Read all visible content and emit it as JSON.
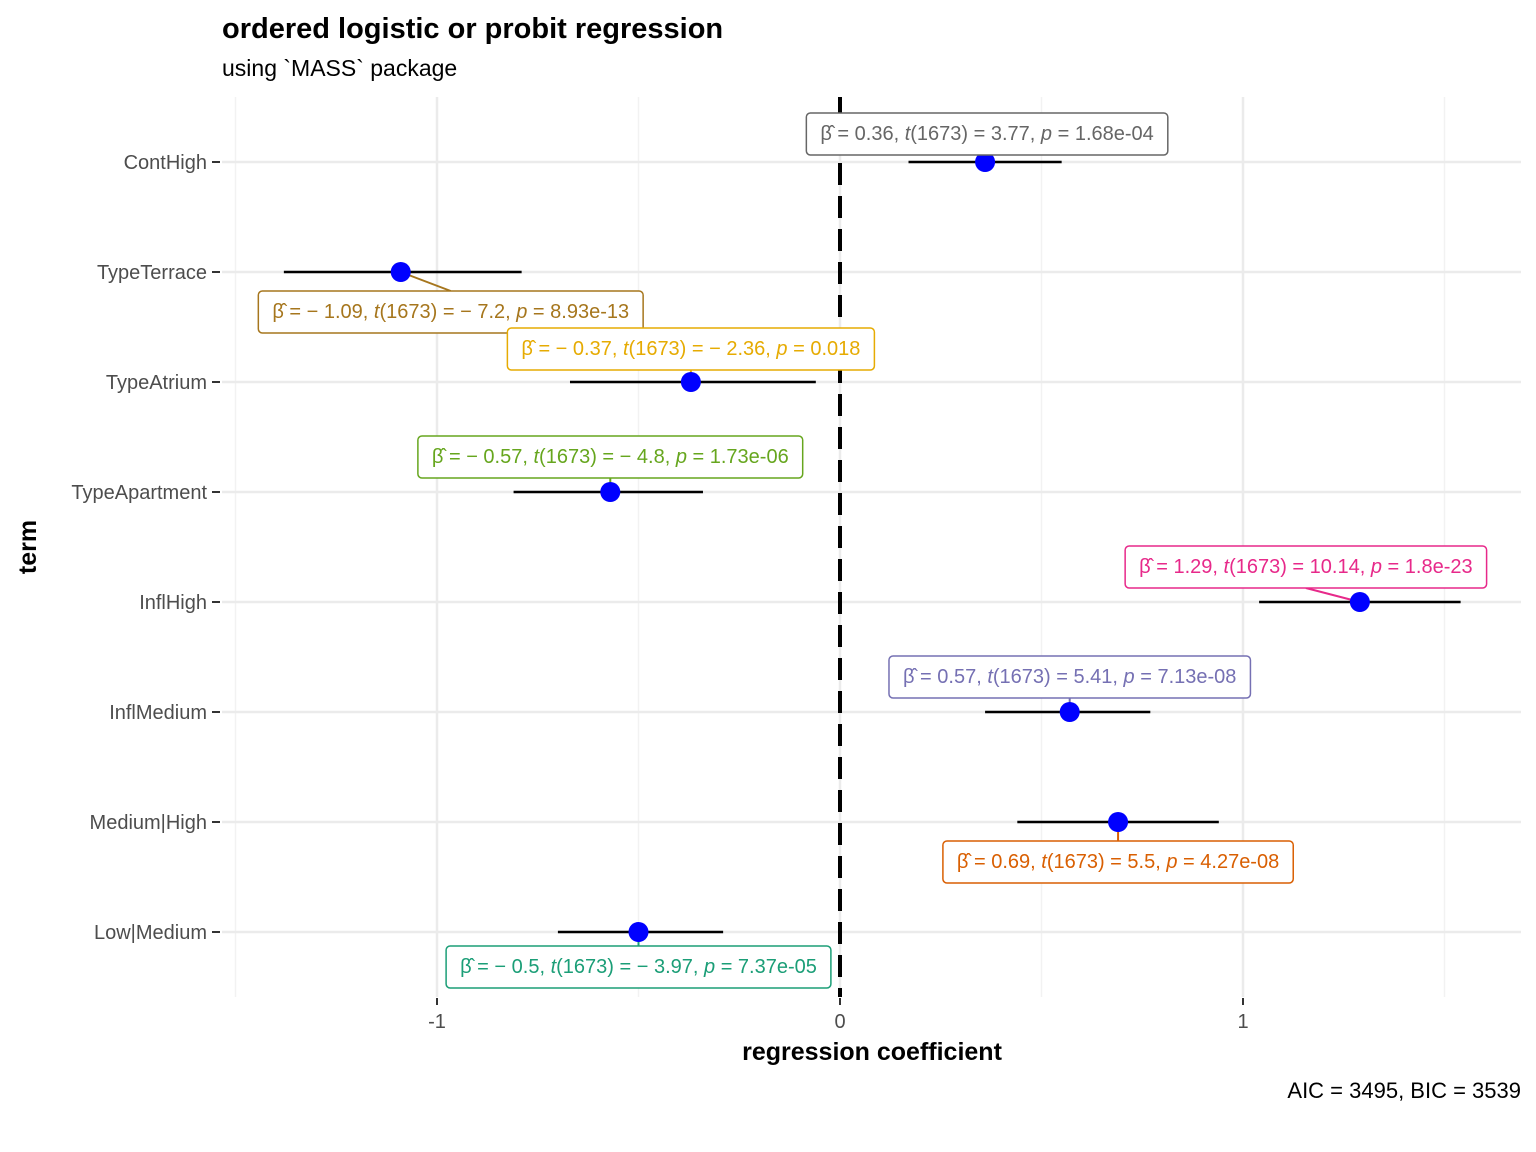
{
  "chart_data": {
    "type": "scatter",
    "title": "ordered logistic or probit regression",
    "subtitle": "using `MASS` package",
    "xlabel": "regression coefficient",
    "ylabel": "term",
    "caption": "AIC = 3495, BIC = 3539",
    "xlim": [
      -1.5,
      1.5
    ],
    "xticks": [
      -1,
      0,
      1
    ],
    "xtick_labels": [
      "-1",
      "0",
      "1"
    ],
    "reference_line": 0,
    "grid": true,
    "point_color": "#0000ff",
    "terms": [
      {
        "term": "ContHigh",
        "estimate": 0.36,
        "ci": [
          0.17,
          0.55
        ],
        "label": {
          "beta": "0.36",
          "df": "1673",
          "t": "3.77",
          "p": "1.68e-04"
        },
        "color": "#666666"
      },
      {
        "term": "TypeTerrace",
        "estimate": -1.09,
        "ci": [
          -1.38,
          -0.79
        ],
        "label": {
          "beta": "− 1.09",
          "df": "1673",
          "t": "− 7.2",
          "p": "8.93e-13"
        },
        "color": "#A6761D"
      },
      {
        "term": "TypeAtrium",
        "estimate": -0.37,
        "ci": [
          -0.67,
          -0.06
        ],
        "label": {
          "beta": "− 0.37",
          "df": "1673",
          "t": "− 2.36",
          "p": "0.018"
        },
        "color": "#E6AB02"
      },
      {
        "term": "TypeApartment",
        "estimate": -0.57,
        "ci": [
          -0.81,
          -0.34
        ],
        "label": {
          "beta": "− 0.57",
          "df": "1673",
          "t": "− 4.8",
          "p": "1.73e-06"
        },
        "color": "#66A61E"
      },
      {
        "term": "InflHigh",
        "estimate": 1.29,
        "ci": [
          1.04,
          1.54
        ],
        "label": {
          "beta": "1.29",
          "df": "1673",
          "t": "10.14",
          "p": "1.8e-23"
        },
        "color": "#E7298A"
      },
      {
        "term": "InflMedium",
        "estimate": 0.57,
        "ci": [
          0.36,
          0.77
        ],
        "label": {
          "beta": "0.57",
          "df": "1673",
          "t": "5.41",
          "p": "7.13e-08"
        },
        "color": "#7570B3"
      },
      {
        "term": "Medium|High",
        "estimate": 0.69,
        "ci": [
          0.44,
          0.94
        ],
        "label": {
          "beta": "0.69",
          "df": "1673",
          "t": "5.5",
          "p": "4.27e-08"
        },
        "color": "#D95F02"
      },
      {
        "term": "Low|Medium",
        "estimate": -0.5,
        "ci": [
          -0.7,
          -0.29
        ],
        "label": {
          "beta": "− 0.5",
          "df": "1673",
          "t": "− 3.97",
          "p": "7.37e-05"
        },
        "color": "#1B9E77"
      }
    ]
  }
}
